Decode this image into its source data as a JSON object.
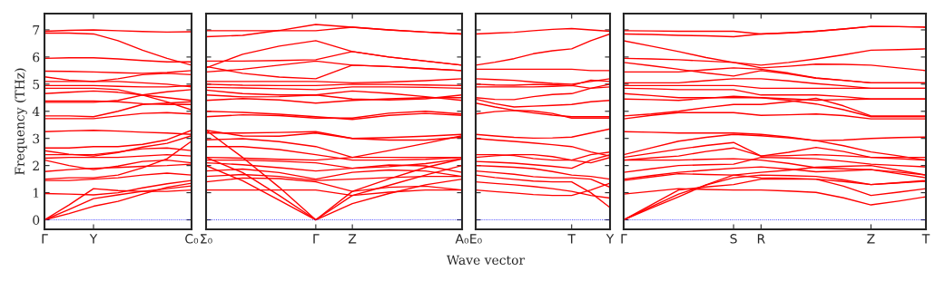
{
  "chart_data": [
    {
      "type": "line",
      "color": "#ff0000",
      "ylabel": "Frequency (THz)",
      "ylim": [
        -0.35,
        7.6
      ],
      "yticks": [
        0,
        1,
        2,
        3,
        4,
        5,
        6,
        7
      ],
      "categories": [
        "Γ",
        null,
        "Y",
        null,
        null,
        null,
        "C₀"
      ],
      "ref_lines": [
        {
          "axis": "y",
          "value": 0,
          "color": "#0000ff",
          "line_style": "dotted"
        }
      ],
      "series": [
        {
          "values": [
            6.95,
            6.98,
            7.0,
            6.97,
            6.94,
            6.92,
            6.93
          ]
        },
        {
          "values": [
            6.88,
            6.88,
            6.85,
            6.6,
            6.25,
            5.95,
            5.7
          ]
        },
        {
          "values": [
            5.95,
            5.97,
            5.97,
            5.93,
            5.87,
            5.82,
            5.82
          ]
        },
        {
          "values": [
            5.48,
            5.47,
            5.45,
            5.42,
            5.4,
            5.43,
            5.5
          ]
        },
        {
          "values": [
            5.27,
            5.15,
            5.1,
            5.2,
            5.35,
            5.4,
            5.35
          ]
        },
        {
          "values": [
            5.1,
            5.1,
            5.1,
            5.1,
            5.05,
            5.0,
            4.9
          ]
        },
        {
          "values": [
            4.95,
            4.95,
            4.95,
            4.92,
            4.9,
            4.9,
            4.95
          ]
        },
        {
          "values": [
            4.85,
            4.85,
            4.85,
            4.8,
            4.6,
            4.35,
            4.05
          ]
        },
        {
          "values": [
            4.65,
            4.7,
            4.75,
            4.7,
            4.6,
            4.5,
            4.4
          ]
        },
        {
          "values": [
            4.38,
            4.38,
            4.38,
            4.35,
            4.28,
            4.25,
            4.25
          ]
        },
        {
          "values": [
            4.33,
            4.33,
            4.33,
            4.4,
            4.6,
            4.72,
            4.8
          ]
        },
        {
          "values": [
            3.83,
            3.83,
            3.8,
            4.0,
            4.25,
            4.3,
            4.35
          ]
        },
        {
          "values": [
            3.73,
            3.73,
            3.73,
            3.83,
            3.92,
            3.95,
            3.9
          ]
        },
        {
          "values": [
            3.25,
            3.28,
            3.3,
            3.27,
            3.23,
            3.2,
            3.15
          ]
        },
        {
          "values": [
            2.65,
            2.65,
            2.7,
            2.7,
            2.78,
            2.95,
            3.3
          ]
        },
        {
          "values": [
            2.55,
            2.42,
            2.35,
            2.48,
            2.68,
            2.82,
            3.1
          ]
        },
        {
          "values": [
            2.4,
            2.4,
            2.4,
            2.5,
            2.62,
            2.65,
            2.55
          ]
        },
        {
          "values": [
            2.27,
            2.3,
            2.3,
            2.3,
            2.35,
            2.4,
            2.35
          ]
        },
        {
          "values": [
            2.2,
            2.0,
            1.85,
            1.98,
            2.15,
            2.2,
            2.1
          ]
        },
        {
          "values": [
            1.78,
            1.85,
            1.9,
            1.93,
            1.97,
            2.0,
            2.05
          ]
        },
        {
          "values": [
            1.5,
            1.55,
            1.55,
            1.65,
            1.92,
            2.25,
            2.9
          ]
        },
        {
          "values": [
            1.45,
            1.45,
            1.5,
            1.55,
            1.65,
            1.72,
            1.65
          ]
        },
        {
          "values": [
            0.97,
            0.95,
            0.92,
            1.0,
            1.18,
            1.33,
            1.45
          ]
        },
        {
          "values": [
            0,
            0.55,
            1.15,
            1.08,
            1.05,
            1.15,
            1.25
          ]
        },
        {
          "values": [
            0,
            0.38,
            0.78,
            0.92,
            1.05,
            1.05,
            1.1
          ]
        },
        {
          "values": [
            0,
            0.23,
            0.5,
            0.68,
            0.95,
            1.2,
            1.35
          ]
        }
      ]
    },
    {
      "type": "line",
      "color": "#ff0000",
      "xlabel": "Wave vector",
      "tick_labels": "x",
      "ylim": [
        -0.35,
        7.6
      ],
      "yticks": [
        0,
        1,
        2,
        3,
        4,
        5,
        6,
        7
      ],
      "categories": [
        "Σ₀",
        null,
        null,
        "Γ",
        "Z",
        null,
        null,
        "A₀"
      ],
      "ref_lines": [
        {
          "axis": "y",
          "value": 0,
          "color": "#0000ff",
          "line_style": "dotted"
        }
      ],
      "series": [
        {
          "values": [
            6.97,
            6.97,
            6.97,
            6.97,
            7.1,
            7.0,
            6.92,
            6.85
          ]
        },
        {
          "values": [
            6.75,
            6.8,
            6.98,
            7.2,
            7.1,
            7.0,
            6.92,
            6.85
          ]
        },
        {
          "values": [
            5.6,
            6.1,
            6.4,
            6.6,
            6.2,
            6.0,
            5.85,
            5.7
          ]
        },
        {
          "values": [
            5.85,
            5.85,
            5.87,
            5.9,
            6.2,
            6.0,
            5.85,
            5.7
          ]
        },
        {
          "values": [
            5.45,
            5.55,
            5.7,
            5.85,
            5.7,
            5.65,
            5.57,
            5.5
          ]
        },
        {
          "values": [
            5.65,
            5.4,
            5.26,
            5.2,
            5.7,
            5.65,
            5.57,
            5.5
          ]
        },
        {
          "values": [
            5.1,
            5.1,
            5.1,
            5.1,
            5.05,
            5.08,
            5.13,
            5.2
          ]
        },
        {
          "values": [
            5.0,
            4.96,
            4.95,
            4.95,
            5.0,
            4.99,
            4.97,
            4.95
          ]
        },
        {
          "values": [
            4.88,
            4.86,
            4.83,
            4.8,
            4.9,
            4.9,
            4.88,
            4.85
          ]
        },
        {
          "values": [
            4.78,
            4.65,
            4.6,
            4.6,
            4.75,
            4.66,
            4.54,
            4.4
          ]
        },
        {
          "values": [
            4.6,
            4.53,
            4.54,
            4.6,
            4.45,
            4.42,
            4.46,
            4.6
          ]
        },
        {
          "values": [
            4.4,
            4.47,
            4.42,
            4.3,
            4.4,
            4.46,
            4.5,
            4.5
          ]
        },
        {
          "values": [
            3.8,
            3.87,
            3.84,
            3.75,
            3.75,
            3.93,
            4.0,
            3.9
          ]
        },
        {
          "values": [
            4.0,
            3.96,
            3.89,
            3.8,
            3.7,
            3.85,
            3.92,
            3.85
          ]
        },
        {
          "values": [
            3.3,
            3.09,
            3.08,
            3.2,
            3.0,
            3.03,
            3.08,
            3.15
          ]
        },
        {
          "values": [
            3.2,
            3.2,
            3.22,
            3.25,
            3.0,
            2.94,
            2.94,
            3.05
          ]
        },
        {
          "values": [
            2.95,
            2.99,
            2.88,
            2.7,
            2.3,
            2.55,
            2.82,
            3.1
          ]
        },
        {
          "values": [
            2.7,
            2.7,
            2.59,
            2.4,
            2.2,
            2.2,
            2.23,
            2.3
          ]
        },
        {
          "values": [
            2.3,
            2.27,
            2.23,
            2.2,
            2.3,
            2.3,
            2.3,
            2.3
          ]
        },
        {
          "values": [
            2.2,
            2.2,
            2.16,
            2.1,
            1.9,
            1.96,
            2.07,
            2.25
          ]
        },
        {
          "values": [
            2.1,
            2.03,
            1.92,
            1.8,
            1.9,
            2.02,
            1.99,
            1.75
          ]
        },
        {
          "values": [
            1.8,
            1.87,
            1.74,
            1.5,
            1.75,
            1.84,
            1.8,
            1.6
          ]
        },
        {
          "values": [
            1.6,
            1.67,
            1.6,
            1.45,
            1.5,
            1.56,
            1.6,
            1.6
          ]
        },
        {
          "values": [
            1.4,
            1.54,
            1.52,
            1.4,
            1.05,
            1.2,
            1.24,
            1.1
          ]
        },
        {
          "values": [
            1.1,
            1.1,
            1.1,
            1.1,
            0.9,
            1.02,
            1.1,
            1.1
          ]
        },
        {
          "values": [
            3.3,
            2.3,
            1.2,
            0,
            0.6,
            0.97,
            1.29,
            1.5
          ]
        },
        {
          "values": [
            2.3,
            1.74,
            0.9,
            0,
            0.9,
            1.27,
            1.65,
            2.0
          ]
        },
        {
          "values": [
            2.0,
            1.44,
            0.72,
            0,
            1.05,
            1.51,
            1.93,
            2.25
          ]
        }
      ]
    },
    {
      "type": "line",
      "color": "#ff0000",
      "tick_labels": "x",
      "ylim": [
        -0.35,
        7.6
      ],
      "yticks": [
        0,
        1,
        2,
        3,
        4,
        5,
        6,
        7
      ],
      "categories": [
        "E₀",
        null,
        null,
        null,
        null,
        "T",
        null,
        "Y"
      ],
      "ref_lines": [
        {
          "axis": "y",
          "value": 0,
          "color": "#0000ff",
          "line_style": "dotted"
        }
      ],
      "series": [
        {
          "values": [
            6.85,
            6.88,
            6.91,
            6.97,
            7.02,
            7.05,
            7.0,
            6.95
          ]
        },
        {
          "values": [
            5.7,
            5.81,
            5.94,
            6.12,
            6.23,
            6.3,
            6.6,
            6.85
          ]
        },
        {
          "values": [
            5.55,
            5.55,
            5.55,
            5.55,
            5.55,
            5.55,
            5.5,
            5.5
          ]
        },
        {
          "values": [
            5.2,
            5.17,
            5.14,
            5.08,
            5.03,
            5.0,
            5.1,
            5.2
          ]
        },
        {
          "values": [
            5.0,
            4.97,
            4.96,
            4.99,
            4.98,
            4.95,
            5.15,
            5.1
          ]
        },
        {
          "values": [
            4.9,
            4.9,
            4.9,
            4.9,
            4.92,
            4.95,
            4.85,
            4.9
          ]
        },
        {
          "values": [
            4.5,
            4.44,
            4.43,
            4.54,
            4.62,
            4.65,
            4.85,
            5.0
          ]
        },
        {
          "values": [
            4.45,
            4.28,
            4.16,
            4.19,
            4.22,
            4.25,
            4.35,
            4.4
          ]
        },
        {
          "values": [
            3.9,
            3.99,
            4.03,
            3.94,
            3.86,
            3.8,
            3.8,
            3.8
          ]
        },
        {
          "values": [
            4.3,
            4.16,
            4.04,
            4.01,
            3.92,
            3.75,
            3.75,
            3.75
          ]
        },
        {
          "values": [
            3.15,
            3.09,
            3.04,
            3.01,
            3.02,
            3.05,
            3.2,
            3.35
          ]
        },
        {
          "values": [
            3.0,
            2.94,
            2.89,
            2.83,
            2.77,
            2.7,
            2.5,
            2.35
          ]
        },
        {
          "values": [
            2.4,
            2.4,
            2.37,
            2.26,
            2.2,
            2.2,
            2.4,
            2.5
          ]
        },
        {
          "values": [
            2.3,
            2.36,
            2.4,
            2.4,
            2.33,
            2.2,
            2.1,
            2.3
          ]
        },
        {
          "values": [
            2.15,
            2.12,
            2.09,
            2.03,
            1.97,
            1.9,
            2.2,
            2.4
          ]
        },
        {
          "values": [
            2.0,
            1.97,
            1.94,
            1.89,
            1.78,
            1.65,
            1.6,
            1.5
          ]
        },
        {
          "values": [
            1.8,
            1.74,
            1.68,
            1.59,
            1.55,
            1.55,
            1.5,
            1.2
          ]
        },
        {
          "values": [
            1.65,
            1.56,
            1.49,
            1.43,
            1.4,
            1.4,
            1.0,
            0.45
          ]
        },
        {
          "values": [
            1.1,
            1.04,
            0.99,
            0.93,
            0.9,
            0.9,
            1.1,
            1.35
          ]
        },
        {
          "values": [
            1.4,
            1.34,
            1.29,
            1.23,
            1.15,
            1.05,
            0.9,
            0.8
          ]
        }
      ]
    },
    {
      "type": "line",
      "color": "#ff0000",
      "tick_labels": "x",
      "ylim": [
        -0.35,
        7.6
      ],
      "yticks": [
        0,
        1,
        2,
        3,
        4,
        5,
        6,
        7
      ],
      "categories": [
        "Γ",
        null,
        null,
        null,
        "S",
        "R",
        null,
        null,
        null,
        "Z",
        null,
        "T"
      ],
      "ref_lines": [
        {
          "axis": "y",
          "value": 0,
          "color": "#0000ff",
          "line_style": "dotted"
        }
      ],
      "series": [
        {
          "values": [
            6.97,
            6.96,
            6.95,
            6.95,
            6.95,
            6.85,
            6.89,
            6.95,
            7.03,
            7.13,
            7.12,
            7.1
          ]
        },
        {
          "values": [
            6.85,
            6.83,
            6.8,
            6.78,
            6.75,
            6.85,
            6.89,
            6.95,
            7.03,
            7.13,
            7.12,
            7.1
          ]
        },
        {
          "values": [
            6.6,
            6.4,
            6.2,
            5.98,
            5.8,
            5.7,
            5.8,
            5.93,
            6.08,
            6.25,
            6.27,
            6.3
          ]
        },
        {
          "values": [
            5.95,
            5.93,
            5.9,
            5.85,
            5.8,
            5.6,
            5.66,
            5.74,
            5.73,
            5.7,
            5.6,
            5.5
          ]
        },
        {
          "values": [
            5.8,
            5.68,
            5.55,
            5.41,
            5.3,
            5.5,
            5.38,
            5.22,
            5.14,
            5.05,
            5.05,
            5.05
          ]
        },
        {
          "values": [
            5.45,
            5.45,
            5.45,
            5.53,
            5.6,
            5.55,
            5.41,
            5.23,
            5.14,
            5.05,
            5.05,
            5.05
          ]
        },
        {
          "values": [
            5.05,
            5.05,
            5.05,
            5.13,
            5.2,
            5.2,
            5.12,
            5.02,
            4.94,
            4.85,
            4.85,
            4.85
          ]
        },
        {
          "values": [
            4.95,
            4.95,
            4.95,
            4.95,
            4.95,
            4.85,
            4.85,
            4.85,
            4.85,
            4.85,
            4.85,
            4.85
          ]
        },
        {
          "values": [
            4.85,
            4.83,
            4.8,
            4.8,
            4.8,
            4.6,
            4.6,
            4.6,
            4.54,
            4.45,
            4.45,
            4.45
          ]
        },
        {
          "values": [
            4.65,
            4.58,
            4.5,
            4.5,
            4.5,
            4.5,
            4.46,
            4.41,
            4.43,
            4.45,
            4.45,
            4.45
          ]
        },
        {
          "values": [
            4.45,
            4.43,
            4.4,
            4.48,
            4.55,
            4.5,
            4.4,
            4.27,
            4.06,
            3.8,
            3.8,
            3.8
          ]
        },
        {
          "values": [
            3.83,
            3.9,
            4.0,
            4.14,
            4.25,
            4.25,
            4.35,
            4.48,
            4.2,
            3.83,
            3.83,
            3.83
          ]
        },
        {
          "values": [
            3.72,
            3.85,
            3.95,
            3.95,
            3.95,
            3.85,
            3.87,
            3.9,
            3.84,
            3.72,
            3.72,
            3.72
          ]
        },
        {
          "values": [
            3.25,
            3.23,
            3.2,
            3.2,
            3.2,
            3.15,
            3.05,
            2.92,
            2.94,
            3.0,
            3.03,
            3.05
          ]
        },
        {
          "values": [
            2.4,
            2.65,
            2.9,
            3.04,
            3.15,
            3.1,
            3.02,
            2.92,
            2.73,
            2.5,
            2.36,
            2.2
          ]
        },
        {
          "values": [
            2.3,
            2.45,
            2.6,
            2.74,
            2.85,
            2.35,
            2.49,
            2.67,
            2.52,
            2.3,
            2.3,
            2.3
          ]
        },
        {
          "values": [
            2.2,
            2.28,
            2.35,
            2.52,
            2.65,
            2.35,
            2.37,
            2.4,
            2.36,
            2.3,
            2.25,
            2.2
          ]
        },
        {
          "values": [
            2.2,
            2.2,
            2.2,
            2.23,
            2.25,
            2.2,
            2.08,
            1.92,
            1.88,
            1.85,
            1.76,
            1.65
          ]
        },
        {
          "values": [
            1.75,
            1.88,
            2.0,
            2.03,
            2.05,
            2.3,
            2.28,
            2.25,
            2.16,
            2.05,
            2.0,
            1.95
          ]
        },
        {
          "values": [
            1.5,
            1.63,
            1.75,
            1.83,
            1.9,
            1.95,
            1.87,
            1.77,
            1.8,
            1.85,
            1.7,
            1.55
          ]
        },
        {
          "values": [
            1.45,
            1.58,
            1.7,
            1.67,
            1.65,
            1.55,
            1.53,
            1.5,
            1.41,
            1.3,
            1.36,
            1.42
          ]
        },
        {
          "values": [
            0.95,
            1.05,
            1.15,
            1.12,
            1.1,
            1.1,
            1.06,
            1.01,
            0.81,
            0.55,
            0.69,
            0.85
          ]
        },
        {
          "values": [
            0,
            0.55,
            1.1,
            1.21,
            1.3,
            1.5,
            1.5,
            1.5,
            1.24,
            0.9,
            1.02,
            1.15
          ]
        },
        {
          "values": [
            0,
            0.48,
            0.95,
            1.28,
            1.55,
            1.65,
            1.63,
            1.6,
            1.47,
            1.3,
            1.37,
            1.45
          ]
        },
        {
          "values": [
            0,
            0.43,
            0.85,
            1.29,
            1.65,
            1.75,
            1.83,
            1.94,
            1.97,
            2.0,
            1.83,
            1.65
          ]
        }
      ]
    }
  ]
}
